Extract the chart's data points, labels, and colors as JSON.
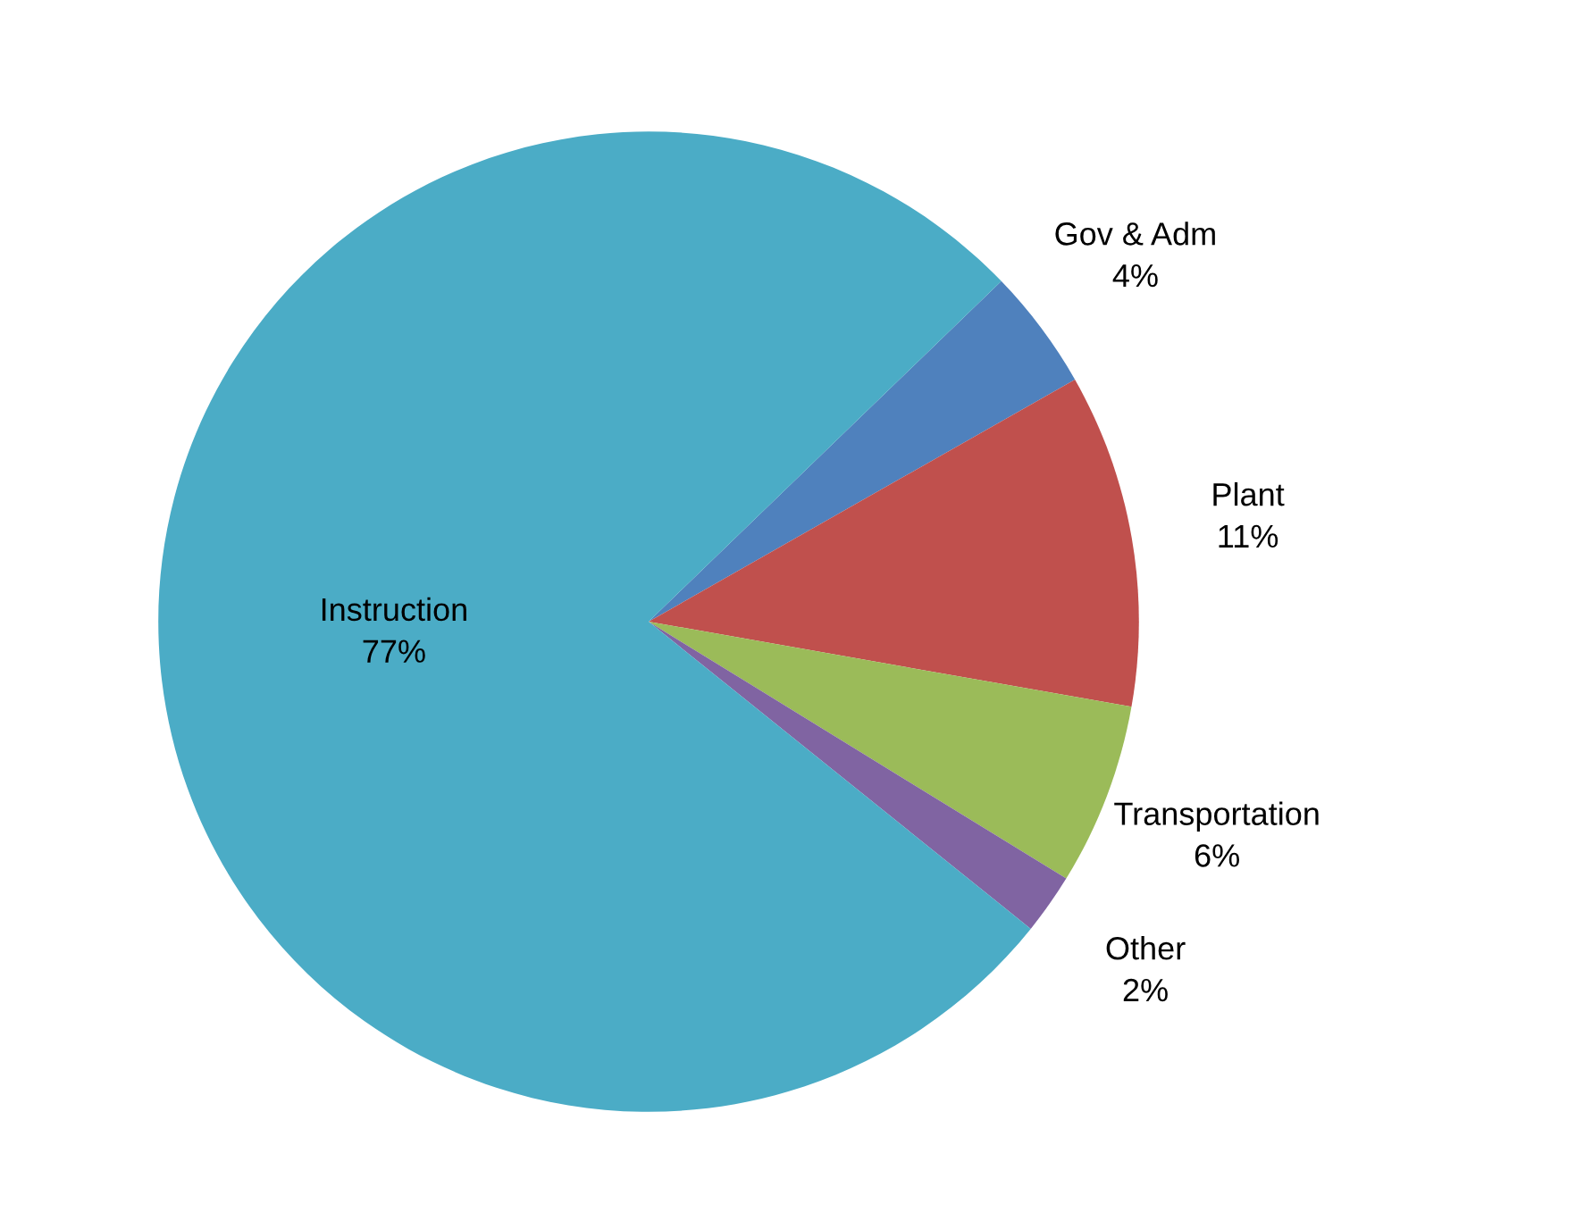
{
  "chart_data": {
    "type": "pie",
    "categories": [
      "Gov & Adm",
      "Plant",
      "Transportation",
      "Other",
      "Instruction"
    ],
    "values": [
      4,
      11,
      6,
      2,
      77
    ],
    "value_labels": [
      "4%",
      "11%",
      "6%",
      "2%",
      "77%"
    ],
    "colors": [
      "#4f81bd",
      "#c0504d",
      "#9bbb59",
      "#8064a2",
      "#4bacc6"
    ],
    "legend": false
  }
}
